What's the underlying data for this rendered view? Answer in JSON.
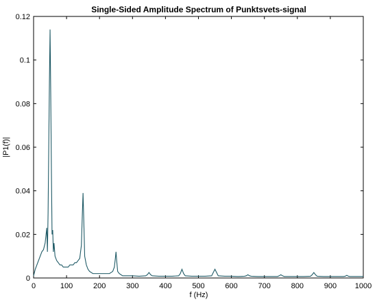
{
  "chart_data": {
    "type": "line",
    "title": "Single-Sided Amplitude Spectrum of Punktsvets-signal",
    "xlabel": "f (Hz)",
    "ylabel": "|P1(f)|",
    "xlim": [
      0,
      1000
    ],
    "ylim": [
      0,
      0.12
    ],
    "xticks": [
      0,
      100,
      200,
      300,
      400,
      500,
      600,
      700,
      800,
      900,
      1000
    ],
    "yticks": [
      0,
      0.02,
      0.04,
      0.06,
      0.08,
      0.1,
      0.12
    ],
    "xtick_labels": [
      "0",
      "100",
      "200",
      "300",
      "400",
      "500",
      "600",
      "700",
      "800",
      "900",
      "1000"
    ],
    "ytick_labels": [
      "0",
      "0.02",
      "0.04",
      "0.06",
      "0.08",
      "0.1",
      "0.12"
    ],
    "grid": false,
    "line_color": "#1f5a66",
    "series": [
      {
        "x": [
          0,
          5,
          10,
          15,
          20,
          25,
          30,
          35,
          40,
          42,
          44,
          46,
          48,
          50,
          52,
          54,
          56,
          58,
          60,
          62,
          65,
          70,
          75,
          80,
          85,
          90,
          95,
          100,
          105,
          110,
          115,
          120,
          125,
          130,
          135,
          140,
          145,
          148,
          150,
          152,
          155,
          160,
          165,
          170,
          180,
          190,
          200,
          210,
          220,
          230,
          240,
          245,
          248,
          250,
          252,
          255,
          260,
          270,
          280,
          290,
          300,
          320,
          340,
          345,
          350,
          355,
          360,
          380,
          400,
          420,
          440,
          445,
          450,
          455,
          460,
          480,
          500,
          520,
          540,
          545,
          550,
          555,
          560,
          580,
          600,
          620,
          640,
          645,
          650,
          655,
          660,
          680,
          700,
          720,
          740,
          745,
          750,
          755,
          760,
          780,
          800,
          820,
          840,
          845,
          850,
          855,
          860,
          880,
          900,
          920,
          940,
          945,
          950,
          955,
          960,
          980,
          1000
        ],
        "y": [
          0.001,
          0.004,
          0.006,
          0.008,
          0.01,
          0.012,
          0.013,
          0.016,
          0.023,
          0.012,
          0.03,
          0.06,
          0.09,
          0.114,
          0.085,
          0.05,
          0.02,
          0.022,
          0.012,
          0.016,
          0.01,
          0.008,
          0.007,
          0.006,
          0.006,
          0.005,
          0.005,
          0.005,
          0.005,
          0.006,
          0.006,
          0.006,
          0.007,
          0.007,
          0.008,
          0.009,
          0.015,
          0.03,
          0.039,
          0.028,
          0.01,
          0.006,
          0.004,
          0.003,
          0.002,
          0.002,
          0.002,
          0.002,
          0.002,
          0.002,
          0.003,
          0.005,
          0.009,
          0.012,
          0.008,
          0.003,
          0.002,
          0.001,
          0.001,
          0.001,
          0.001,
          0.0008,
          0.001,
          0.0015,
          0.0025,
          0.0015,
          0.001,
          0.0008,
          0.0008,
          0.0008,
          0.001,
          0.002,
          0.004,
          0.002,
          0.001,
          0.0008,
          0.0008,
          0.0008,
          0.001,
          0.0025,
          0.004,
          0.0025,
          0.001,
          0.0008,
          0.0008,
          0.0007,
          0.0008,
          0.001,
          0.0015,
          0.001,
          0.0008,
          0.0007,
          0.0007,
          0.0007,
          0.0007,
          0.001,
          0.0015,
          0.001,
          0.0007,
          0.0007,
          0.0007,
          0.0007,
          0.0008,
          0.0015,
          0.0025,
          0.0015,
          0.0008,
          0.0007,
          0.0007,
          0.0007,
          0.0007,
          0.0008,
          0.0012,
          0.0008,
          0.0007,
          0.0007,
          0.0007
        ]
      }
    ]
  }
}
